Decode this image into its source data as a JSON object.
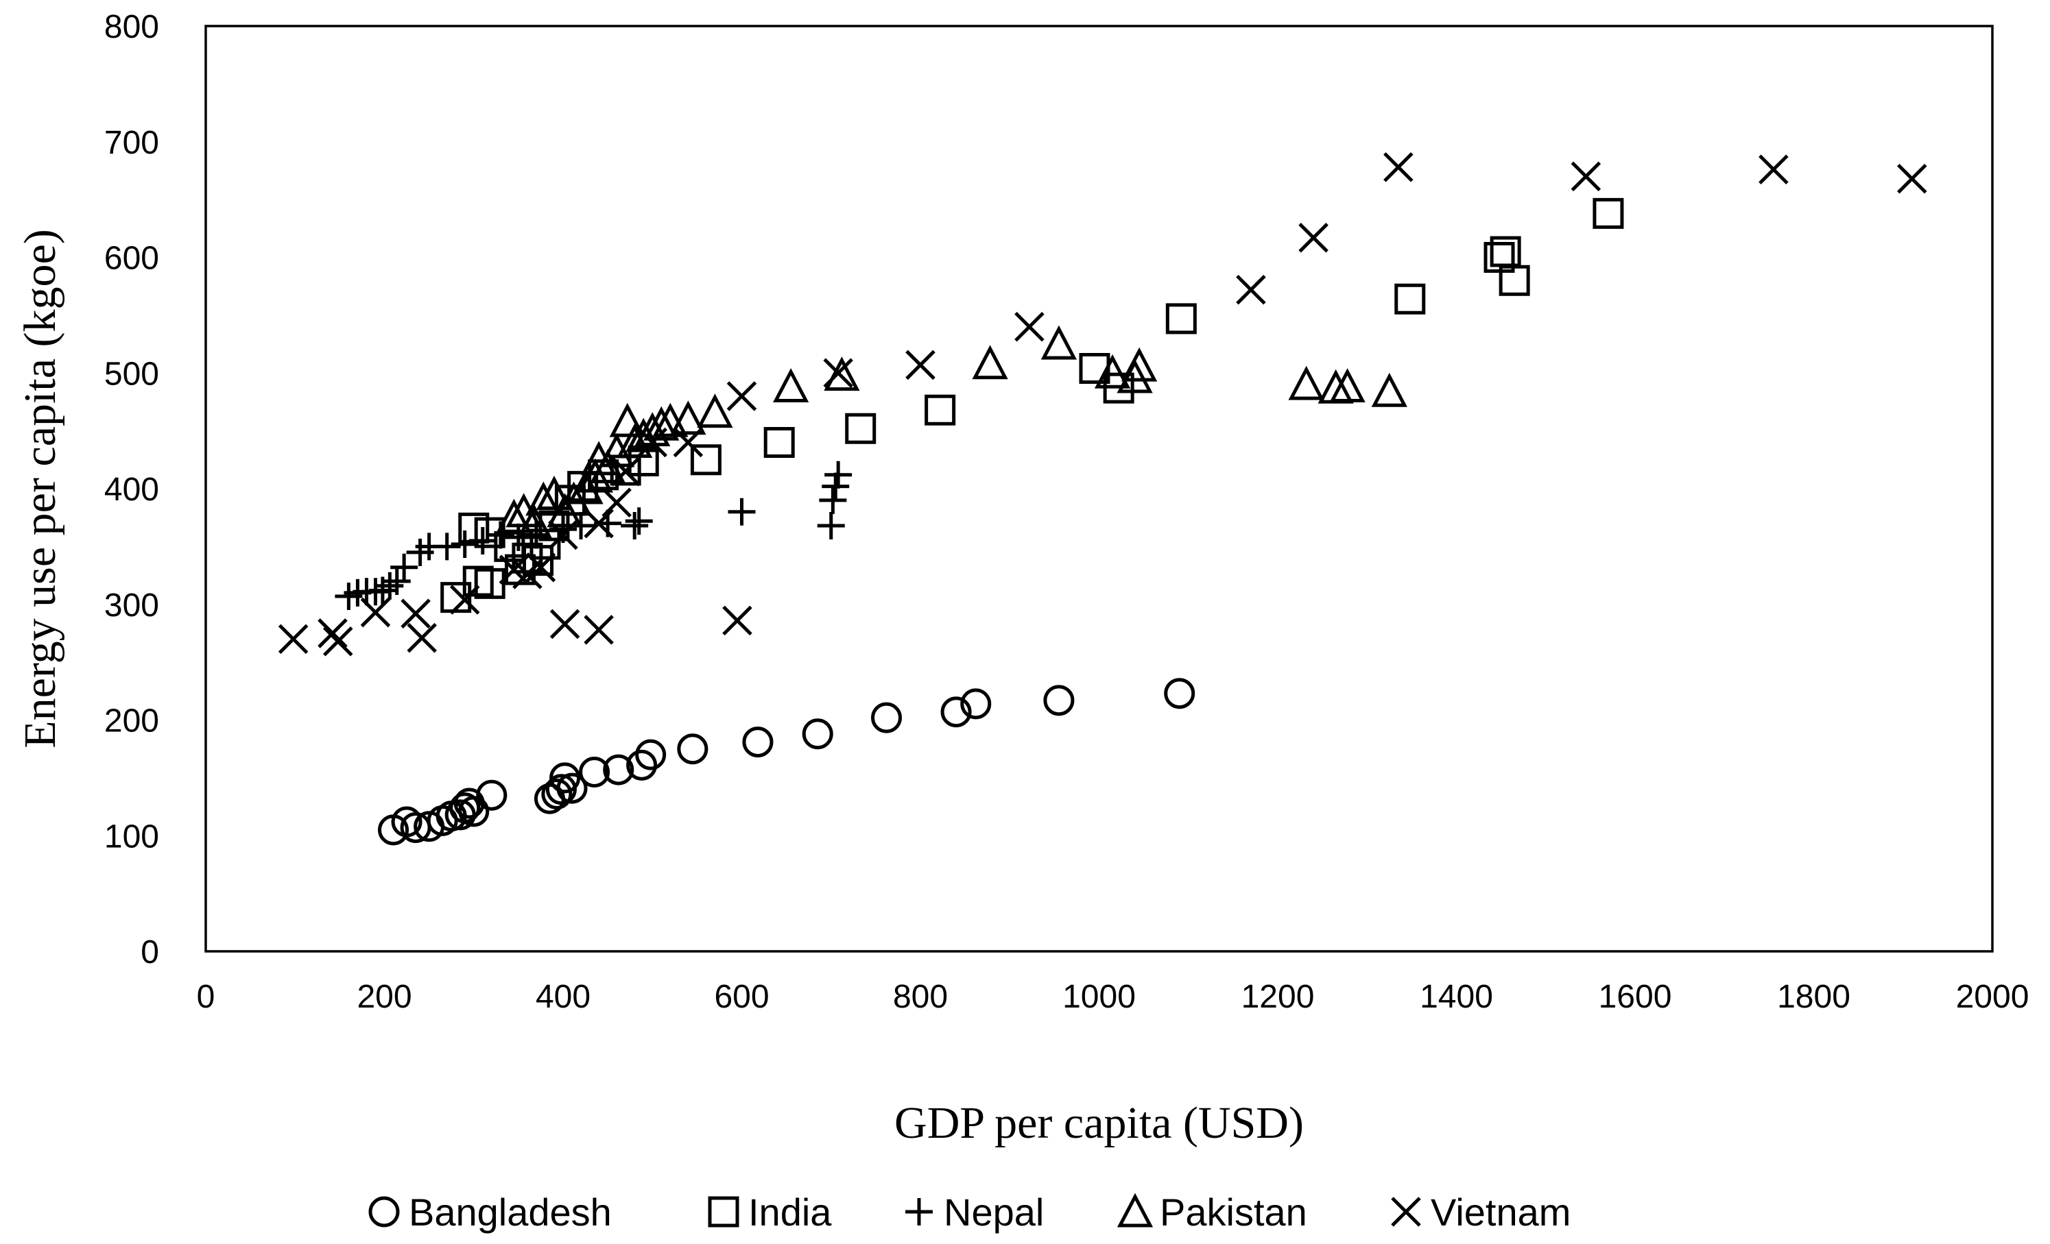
{
  "chart_data": {
    "type": "scatter",
    "title": "",
    "xlabel": "GDP per capita (USD)",
    "ylabel": "Energy use per capita (kgoe)",
    "xlim": [
      0,
      2000
    ],
    "ylim": [
      0,
      800
    ],
    "xticks": [
      0,
      200,
      400,
      600,
      800,
      1000,
      1200,
      1400,
      1600,
      1800,
      2000
    ],
    "yticks": [
      0,
      100,
      200,
      300,
      400,
      500,
      600,
      700,
      800
    ],
    "xtick_labels": [
      "0",
      "200",
      "400",
      "600",
      "800",
      "1000",
      "1200",
      "1400",
      "1600",
      "1800",
      "2000"
    ],
    "ytick_labels": [
      "0",
      "100",
      "200",
      "300",
      "400",
      "500",
      "600",
      "700",
      "800"
    ],
    "grid": false,
    "legend_position": "bottom-center",
    "series": [
      {
        "name": "Bangladesh",
        "marker": "circle",
        "points": [
          [
            210,
            105
          ],
          [
            225,
            112
          ],
          [
            235,
            107
          ],
          [
            250,
            108
          ],
          [
            265,
            113
          ],
          [
            275,
            117
          ],
          [
            285,
            118
          ],
          [
            290,
            124
          ],
          [
            295,
            128
          ],
          [
            300,
            121
          ],
          [
            320,
            135
          ],
          [
            385,
            132
          ],
          [
            393,
            136
          ],
          [
            398,
            140
          ],
          [
            402,
            150
          ],
          [
            410,
            141
          ],
          [
            435,
            155
          ],
          [
            462,
            157
          ],
          [
            488,
            161
          ],
          [
            498,
            170
          ],
          [
            545,
            175
          ],
          [
            618,
            181
          ],
          [
            685,
            188
          ],
          [
            762,
            202
          ],
          [
            840,
            207
          ],
          [
            862,
            214
          ],
          [
            955,
            217
          ],
          [
            1090,
            223
          ]
        ]
      },
      {
        "name": "India",
        "marker": "square",
        "points": [
          [
            280,
            306
          ],
          [
            305,
            320
          ],
          [
            318,
            318
          ],
          [
            300,
            366
          ],
          [
            318,
            362
          ],
          [
            340,
            350
          ],
          [
            352,
            330
          ],
          [
            360,
            340
          ],
          [
            372,
            338
          ],
          [
            380,
            352
          ],
          [
            390,
            368
          ],
          [
            408,
            390
          ],
          [
            422,
            402
          ],
          [
            445,
            412
          ],
          [
            470,
            416
          ],
          [
            490,
            424
          ],
          [
            560,
            425
          ],
          [
            642,
            440
          ],
          [
            733,
            452
          ],
          [
            822,
            468
          ],
          [
            995,
            504
          ],
          [
            1022,
            487
          ],
          [
            1092,
            547
          ],
          [
            1348,
            564
          ],
          [
            1448,
            600
          ],
          [
            1455,
            605
          ],
          [
            1465,
            580
          ],
          [
            1570,
            638
          ]
        ]
      },
      {
        "name": "Nepal",
        "marker": "plus",
        "points": [
          [
            160,
            307
          ],
          [
            170,
            310
          ],
          [
            180,
            311
          ],
          [
            190,
            311
          ],
          [
            198,
            312
          ],
          [
            206,
            316
          ],
          [
            214,
            320
          ],
          [
            222,
            332
          ],
          [
            240,
            345
          ],
          [
            250,
            350
          ],
          [
            270,
            350
          ],
          [
            290,
            352
          ],
          [
            310,
            355
          ],
          [
            330,
            360
          ],
          [
            350,
            358
          ],
          [
            370,
            360
          ],
          [
            400,
            365
          ],
          [
            420,
            368
          ],
          [
            450,
            370
          ],
          [
            480,
            368
          ],
          [
            485,
            372
          ],
          [
            600,
            380
          ],
          [
            700,
            368
          ],
          [
            702,
            390
          ],
          [
            705,
            402
          ],
          [
            708,
            412
          ]
        ]
      },
      {
        "name": "Pakistan",
        "marker": "triangle",
        "points": [
          [
            345,
            375
          ],
          [
            356,
            380
          ],
          [
            368,
            370
          ],
          [
            378,
            390
          ],
          [
            390,
            395
          ],
          [
            402,
            380
          ],
          [
            412,
            390
          ],
          [
            425,
            400
          ],
          [
            436,
            410
          ],
          [
            440,
            425
          ],
          [
            450,
            418
          ],
          [
            460,
            432
          ],
          [
            472,
            458
          ],
          [
            480,
            440
          ],
          [
            490,
            445
          ],
          [
            500,
            450
          ],
          [
            510,
            455
          ],
          [
            520,
            458
          ],
          [
            540,
            460
          ],
          [
            570,
            466
          ],
          [
            655,
            488
          ],
          [
            712,
            498
          ],
          [
            878,
            508
          ],
          [
            955,
            525
          ],
          [
            1015,
            500
          ],
          [
            1040,
            496
          ],
          [
            1045,
            506
          ],
          [
            1232,
            490
          ],
          [
            1265,
            487
          ],
          [
            1278,
            488
          ],
          [
            1325,
            484
          ]
        ]
      },
      {
        "name": "Vietnam",
        "marker": "x",
        "points": [
          [
            98,
            270
          ],
          [
            142,
            275
          ],
          [
            148,
            268
          ],
          [
            190,
            293
          ],
          [
            235,
            292
          ],
          [
            242,
            271
          ],
          [
            290,
            304
          ],
          [
            345,
            330
          ],
          [
            360,
            326
          ],
          [
            375,
            332
          ],
          [
            400,
            360
          ],
          [
            402,
            283
          ],
          [
            440,
            278
          ],
          [
            440,
            370
          ],
          [
            460,
            388
          ],
          [
            470,
            415
          ],
          [
            500,
            440
          ],
          [
            540,
            440
          ],
          [
            600,
            480
          ],
          [
            595,
            286
          ],
          [
            708,
            500
          ],
          [
            800,
            507
          ],
          [
            922,
            540
          ],
          [
            1170,
            572
          ],
          [
            1240,
            617
          ],
          [
            1335,
            678
          ],
          [
            1545,
            670
          ],
          [
            1755,
            676
          ],
          [
            1910,
            668
          ]
        ]
      }
    ]
  }
}
